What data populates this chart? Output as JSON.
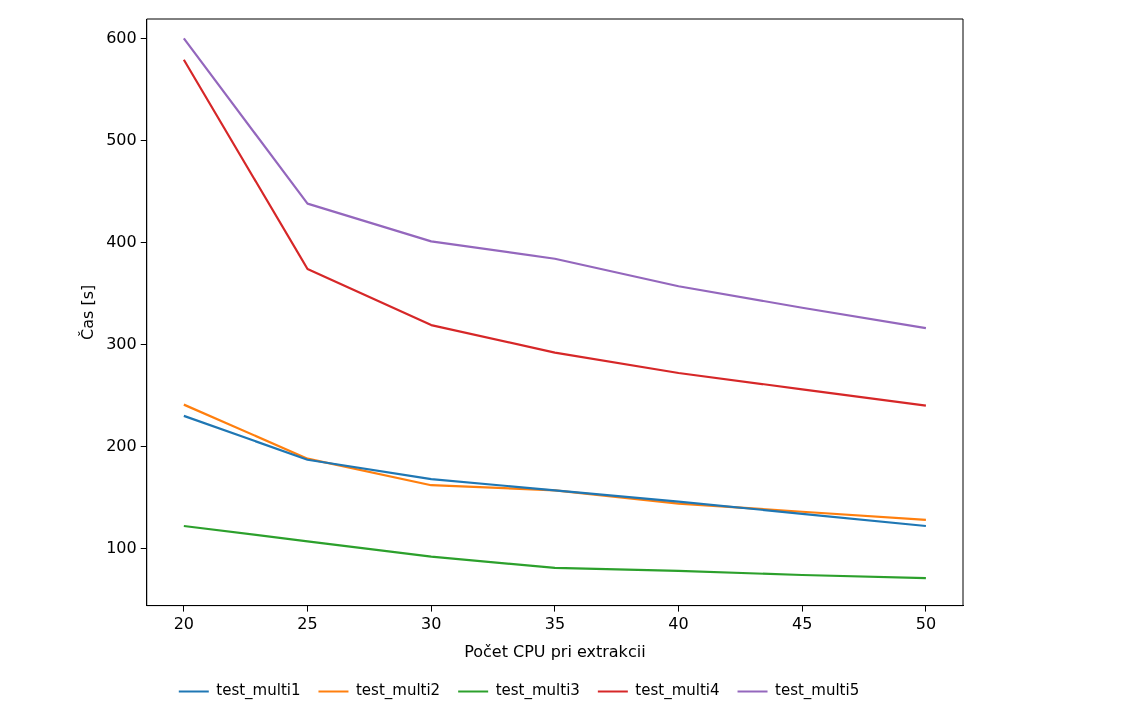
{
  "chart_data": {
    "type": "line",
    "xlabel": "Počet CPU pri extrakcii",
    "ylabel": "Čas [s]",
    "x": [
      20,
      25,
      30,
      35,
      40,
      45,
      50
    ],
    "xlim": [
      18.5,
      51.5
    ],
    "xticks": [
      20,
      25,
      30,
      35,
      40,
      45,
      50
    ],
    "ylim": [
      44,
      619
    ],
    "yticks": [
      100,
      200,
      300,
      400,
      500,
      600
    ],
    "grid": false,
    "legend": "bottom",
    "marker": "none",
    "line_style": "solid",
    "series": [
      {
        "name": "test_multi1",
        "color": "#1f77b4",
        "values": [
          230,
          187,
          168,
          157,
          146,
          134,
          122
        ]
      },
      {
        "name": "test_multi2",
        "color": "#ff7f0e",
        "values": [
          241,
          188,
          162,
          157,
          144,
          136,
          128
        ]
      },
      {
        "name": "test_multi3",
        "color": "#2ca02c",
        "values": [
          122,
          107,
          92,
          81,
          78,
          74,
          71
        ]
      },
      {
        "name": "test_multi4",
        "color": "#d62728",
        "values": [
          579,
          374,
          319,
          292,
          272,
          256,
          240
        ]
      },
      {
        "name": "test_multi5",
        "color": "#9467bd",
        "values": [
          600,
          438,
          401,
          384,
          357,
          336,
          316
        ]
      }
    ]
  }
}
